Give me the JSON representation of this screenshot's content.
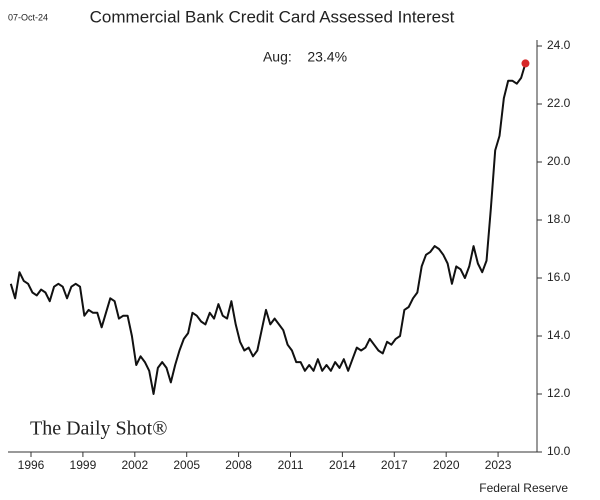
{
  "chart_data": {
    "type": "line",
    "title": "Commercial Bank Credit Card Assessed Interest",
    "date_stamp": "07-Oct-24",
    "annotation": "Aug:    23.4%",
    "source": "Federal Reserve",
    "logo": "The Daily Shot®",
    "x": [
      1994.833,
      1995.083,
      1995.333,
      1995.583,
      1995.833,
      1996.083,
      1996.333,
      1996.583,
      1996.833,
      1997.083,
      1997.333,
      1997.583,
      1997.833,
      1998.083,
      1998.333,
      1998.583,
      1998.833,
      1999.083,
      1999.333,
      1999.583,
      1999.833,
      2000.083,
      2000.333,
      2000.583,
      2000.833,
      2001.083,
      2001.333,
      2001.583,
      2001.833,
      2002.083,
      2002.333,
      2002.583,
      2002.833,
      2003.083,
      2003.333,
      2003.583,
      2003.833,
      2004.083,
      2004.333,
      2004.583,
      2004.833,
      2005.083,
      2005.333,
      2005.583,
      2005.833,
      2006.083,
      2006.333,
      2006.583,
      2006.833,
      2007.083,
      2007.333,
      2007.583,
      2007.833,
      2008.083,
      2008.333,
      2008.583,
      2008.833,
      2009.083,
      2009.333,
      2009.583,
      2009.833,
      2010.083,
      2010.333,
      2010.583,
      2010.833,
      2011.083,
      2011.333,
      2011.583,
      2011.833,
      2012.083,
      2012.333,
      2012.583,
      2012.833,
      2013.083,
      2013.333,
      2013.583,
      2013.833,
      2014.083,
      2014.333,
      2014.583,
      2014.833,
      2015.083,
      2015.333,
      2015.583,
      2015.833,
      2016.083,
      2016.333,
      2016.583,
      2016.833,
      2017.083,
      2017.333,
      2017.583,
      2017.833,
      2018.083,
      2018.333,
      2018.583,
      2018.833,
      2019.083,
      2019.333,
      2019.583,
      2019.833,
      2020.083,
      2020.333,
      2020.583,
      2020.833,
      2021.083,
      2021.333,
      2021.583,
      2021.833,
      2022.083,
      2022.333,
      2022.583,
      2022.833,
      2023.083,
      2023.333,
      2023.583,
      2023.833,
      2024.083,
      2024.333,
      2024.583
    ],
    "series": [
      {
        "color": "#111111",
        "values": [
          15.8,
          15.3,
          16.2,
          15.9,
          15.8,
          15.5,
          15.4,
          15.6,
          15.5,
          15.2,
          15.7,
          15.8,
          15.7,
          15.3,
          15.7,
          15.8,
          15.7,
          14.7,
          14.9,
          14.8,
          14.8,
          14.3,
          14.8,
          15.3,
          15.2,
          14.6,
          14.7,
          14.7,
          14.0,
          13.0,
          13.3,
          13.1,
          12.8,
          12.0,
          12.9,
          13.1,
          12.9,
          12.4,
          13.0,
          13.5,
          13.9,
          14.1,
          14.8,
          14.7,
          14.5,
          14.4,
          14.8,
          14.6,
          15.1,
          14.7,
          14.6,
          15.2,
          14.4,
          13.8,
          13.5,
          13.6,
          13.3,
          13.5,
          14.2,
          14.9,
          14.4,
          14.6,
          14.4,
          14.2,
          13.7,
          13.5,
          13.1,
          13.1,
          12.8,
          13.0,
          12.8,
          13.2,
          12.8,
          13.0,
          12.8,
          13.1,
          12.9,
          13.2,
          12.8,
          13.2,
          13.6,
          13.5,
          13.6,
          13.9,
          13.7,
          13.5,
          13.4,
          13.8,
          13.7,
          13.9,
          14.0,
          14.9,
          15.0,
          15.3,
          15.5,
          16.4,
          16.8,
          16.9,
          17.1,
          17.0,
          16.8,
          16.5,
          15.8,
          16.4,
          16.3,
          16.0,
          16.4,
          17.1,
          16.5,
          16.2,
          16.6,
          18.4,
          20.4,
          20.9,
          22.2,
          22.8,
          22.8,
          22.7,
          22.9,
          23.4
        ]
      }
    ],
    "highlight_color": "#d62728",
    "xlim": [
      1994.67,
      2025.25
    ],
    "xticks": [
      1996,
      1999,
      2002,
      2005,
      2008,
      2011,
      2014,
      2017,
      2020,
      2023
    ],
    "ylim": [
      10,
      24
    ],
    "yticks": [
      {
        "value": 10,
        "label": "10.0"
      },
      {
        "value": 12,
        "label": "12.0"
      },
      {
        "value": 14,
        "label": "14.0"
      },
      {
        "value": 16,
        "label": "16.0"
      },
      {
        "value": 18,
        "label": "18.0"
      },
      {
        "value": 20,
        "label": "20.0"
      },
      {
        "value": 22,
        "label": "22.0"
      },
      {
        "value": 24,
        "label": "24.0"
      }
    ]
  }
}
